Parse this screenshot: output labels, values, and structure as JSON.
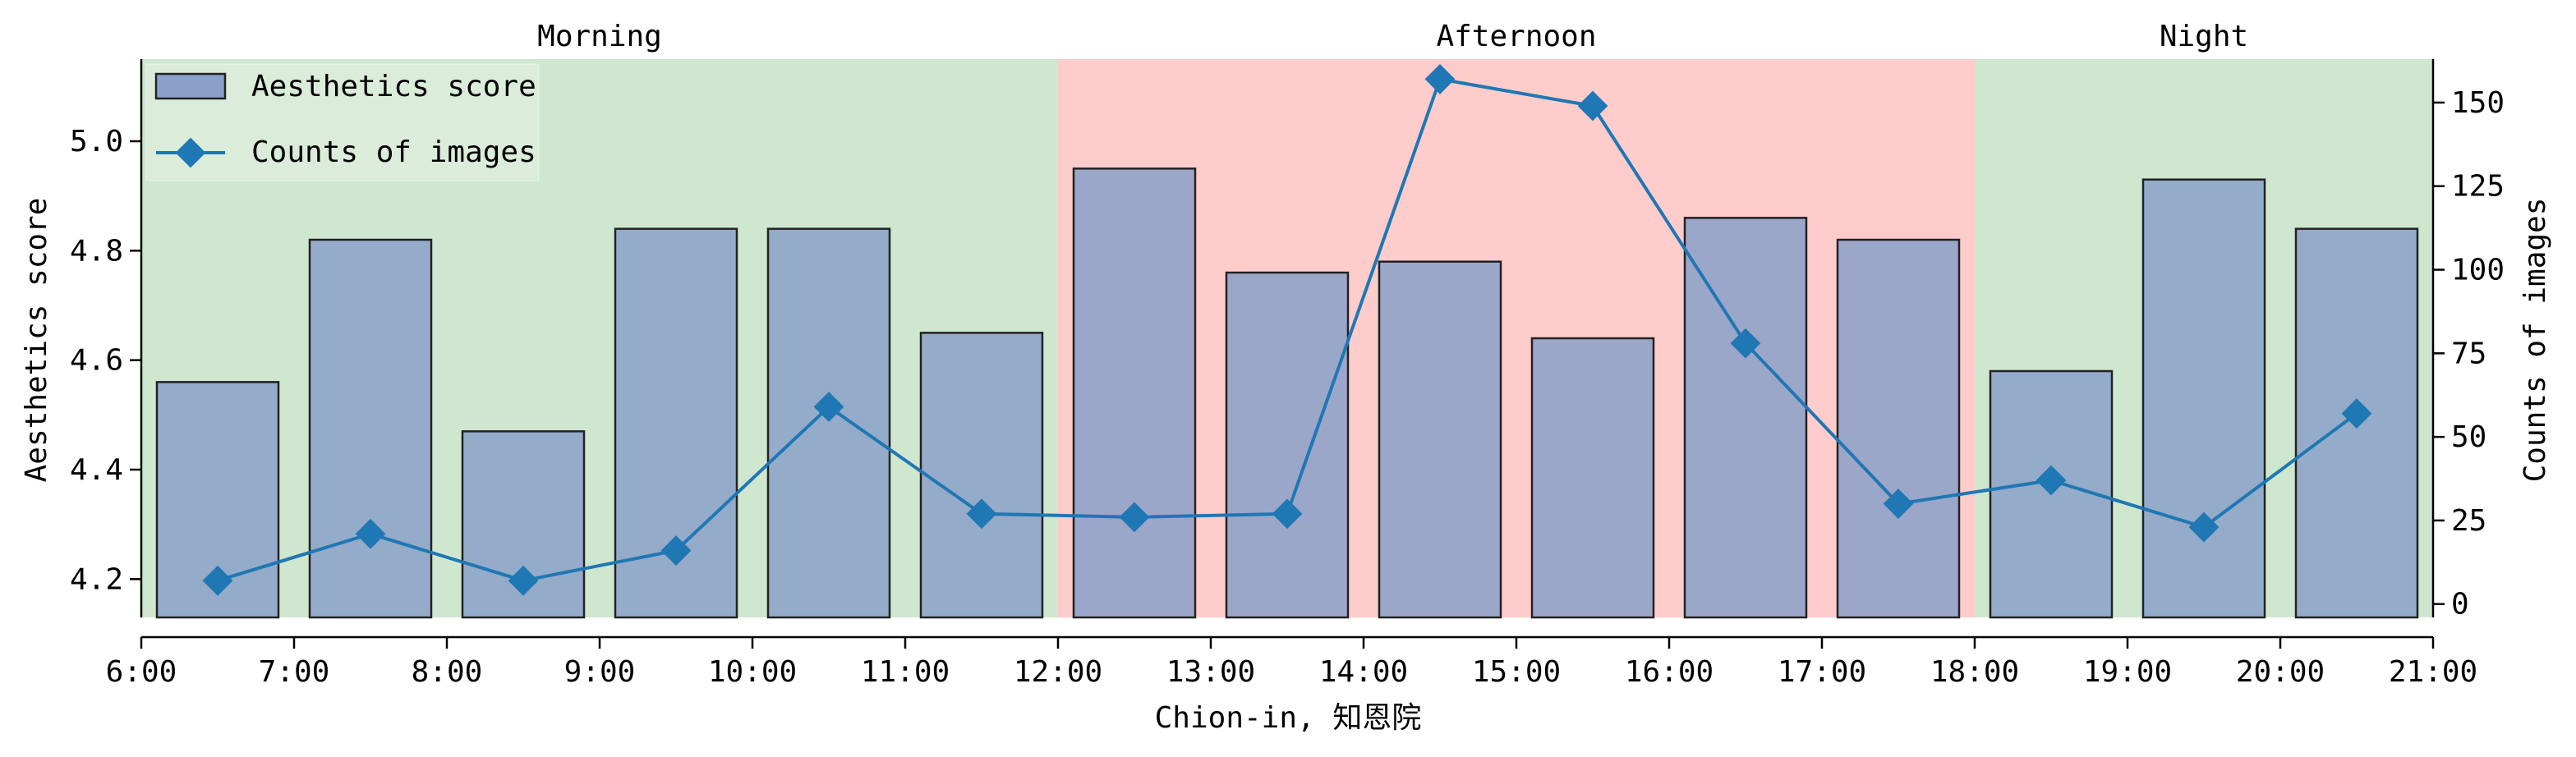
{
  "chart_data": {
    "type": "bar+line",
    "xlabel": "Chion-in, 知恩院",
    "ylabel_left": "Aesthetics score",
    "ylabel_right": "Counts of images",
    "x_ticks": [
      "6:00",
      "7:00",
      "8:00",
      "9:00",
      "10:00",
      "11:00",
      "12:00",
      "13:00",
      "14:00",
      "15:00",
      "16:00",
      "17:00",
      "18:00",
      "19:00",
      "20:00",
      "21:00"
    ],
    "x_range": [
      6,
      21
    ],
    "y_left_range": [
      4.13,
      5.15
    ],
    "y_left_ticks": [
      "4.2",
      "4.4",
      "4.6",
      "4.8",
      "5.0"
    ],
    "y_right_range": [
      -4,
      163
    ],
    "y_right_ticks": [
      "0",
      "25",
      "50",
      "75",
      "100",
      "125",
      "150"
    ],
    "periods": [
      {
        "label": "Morning",
        "start": 6,
        "end": 12,
        "color": "#cfe6cf"
      },
      {
        "label": "Afternoon",
        "start": 12,
        "end": 18,
        "color": "#ffcccc"
      },
      {
        "label": "Night",
        "start": 18,
        "end": 21,
        "color": "#cfe6cf"
      }
    ],
    "series": [
      {
        "name": "Aesthetics score",
        "kind": "bar",
        "axis": "left",
        "x": [
          6.5,
          7.5,
          8.5,
          9.5,
          10.5,
          11.5,
          12.5,
          13.5,
          14.5,
          15.5,
          16.5,
          17.5,
          18.5,
          19.5,
          20.5
        ],
        "values": [
          4.56,
          4.82,
          4.47,
          4.84,
          4.84,
          4.65,
          4.95,
          4.76,
          4.78,
          4.64,
          4.86,
          4.82,
          4.58,
          4.93,
          4.84
        ],
        "color": "#8aa0c8"
      },
      {
        "name": "Counts of images",
        "kind": "line",
        "axis": "right",
        "x": [
          6.5,
          7.5,
          8.5,
          9.5,
          10.5,
          11.5,
          12.5,
          13.5,
          14.5,
          15.5,
          16.5,
          17.5,
          18.5,
          19.5,
          20.5
        ],
        "values": [
          7,
          21,
          7,
          16,
          59,
          27,
          26,
          27,
          157,
          149,
          78,
          30,
          37,
          23,
          57
        ],
        "color": "#1f77b4"
      }
    ],
    "legend_position": "top-left"
  }
}
